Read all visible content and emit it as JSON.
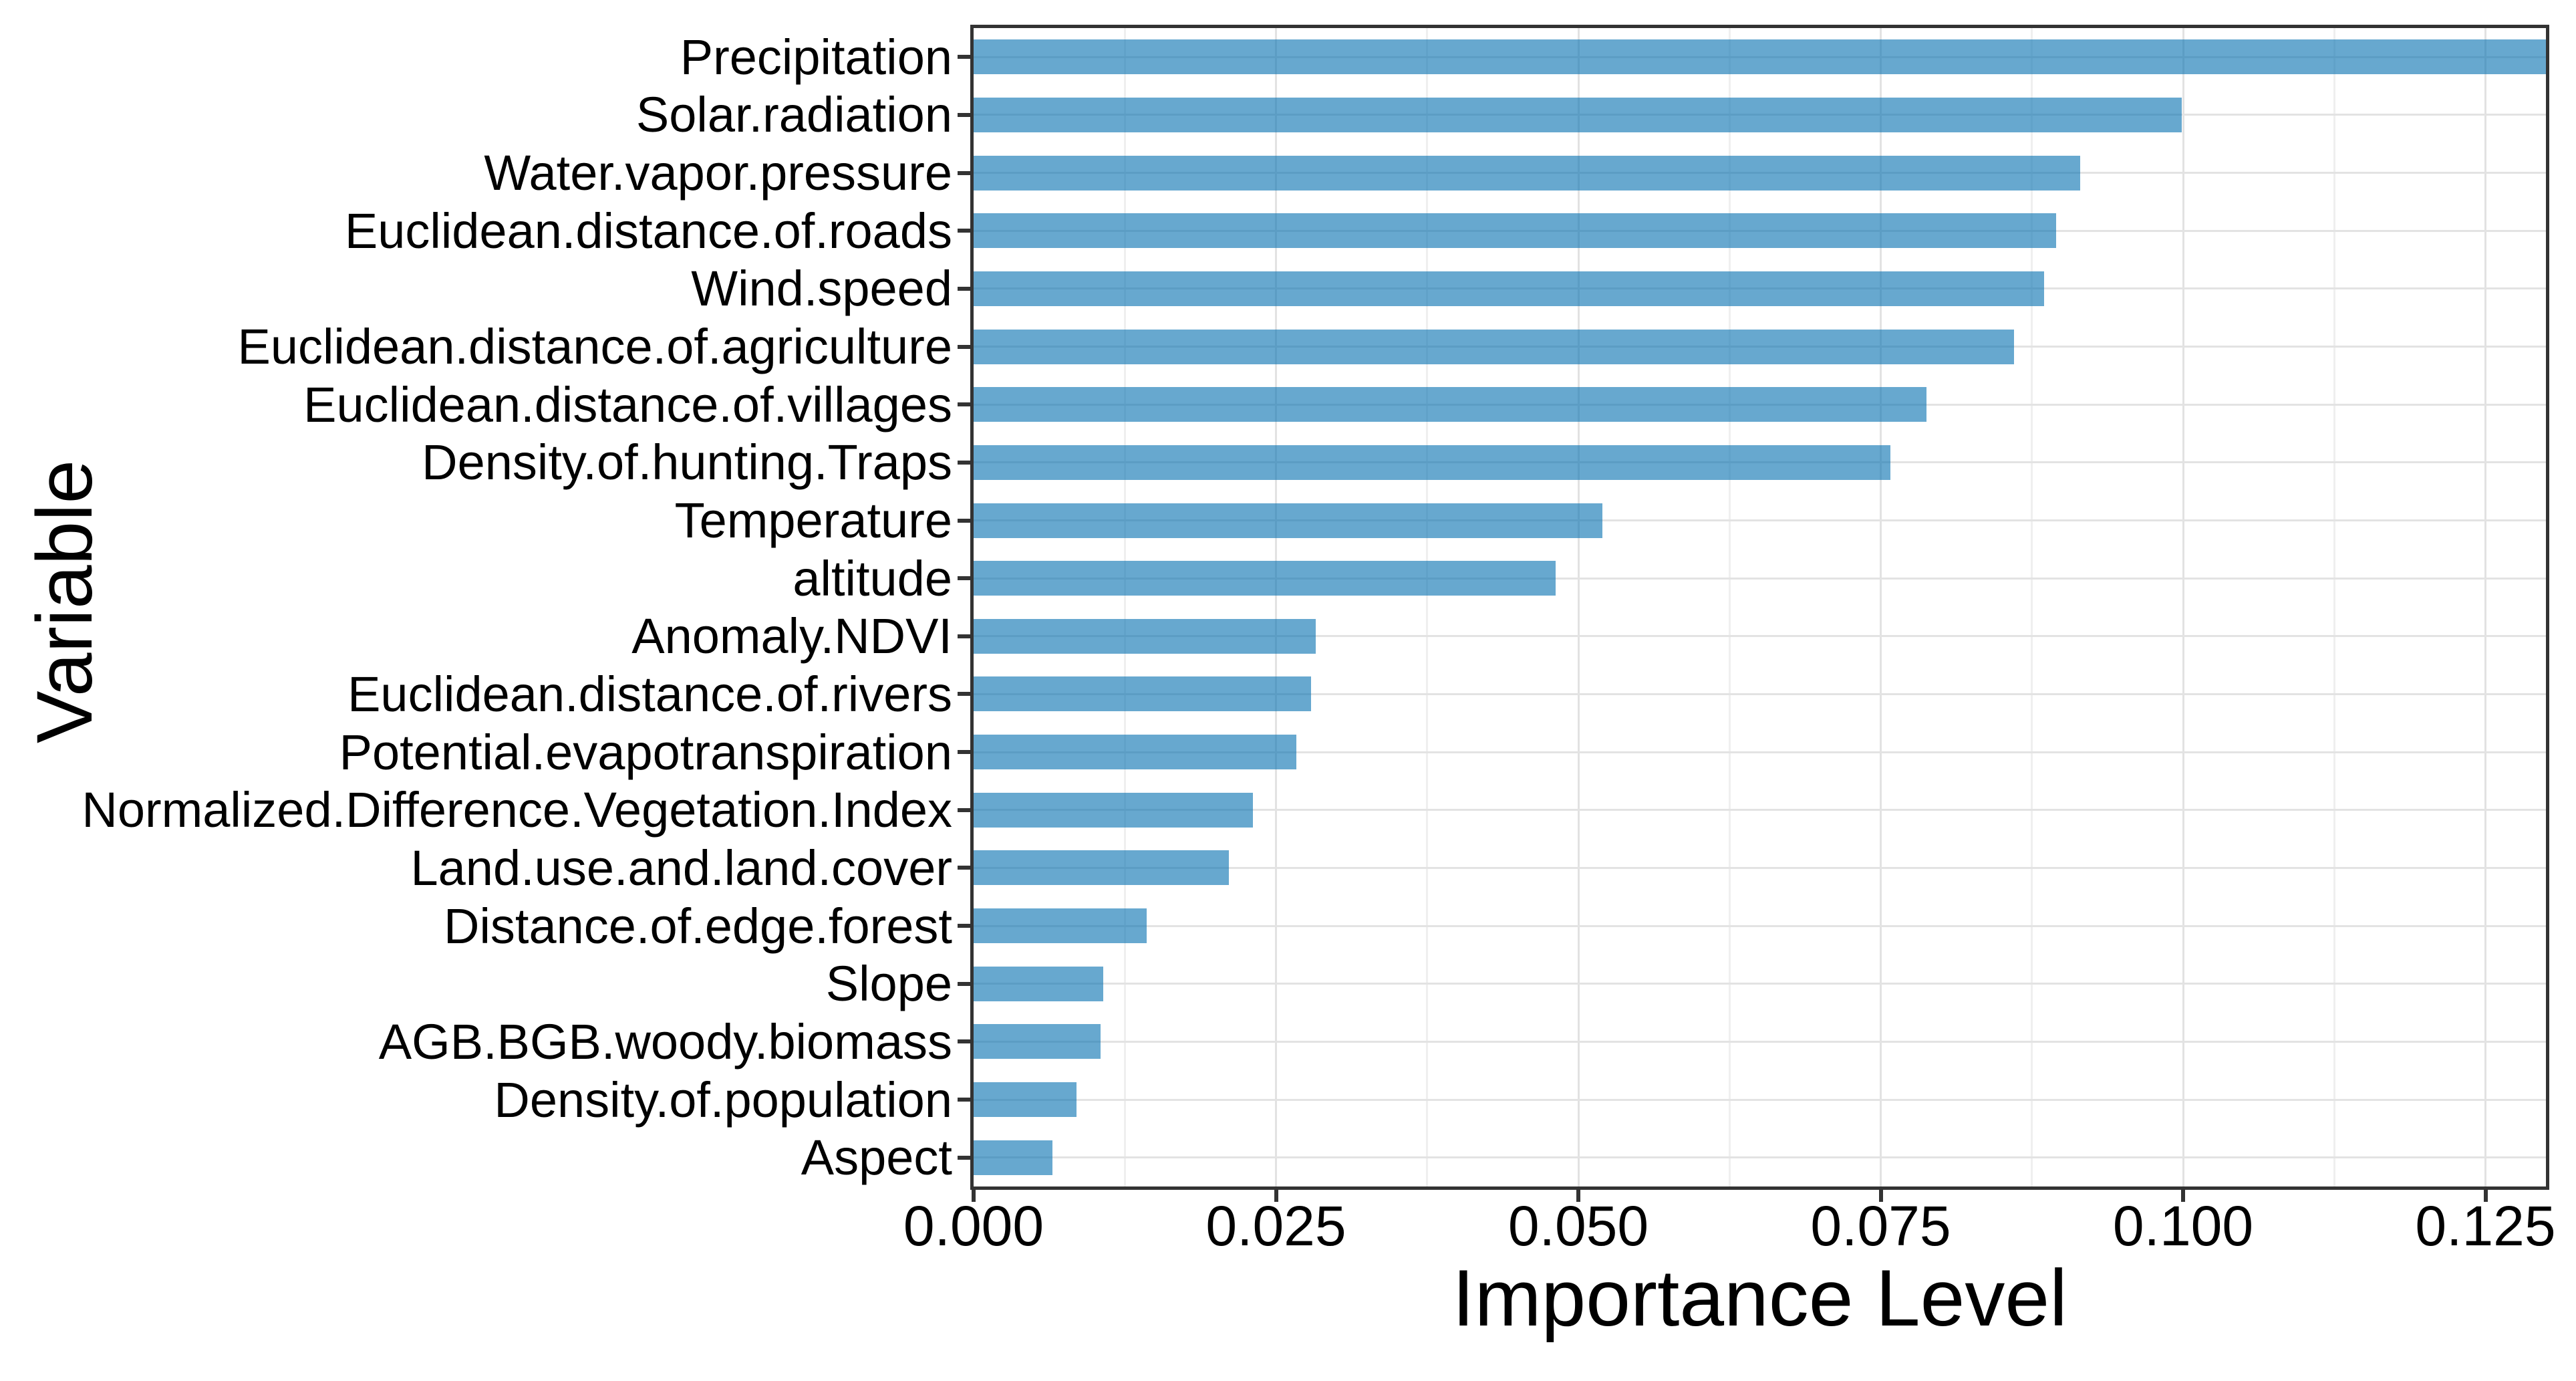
{
  "chart_data": {
    "type": "bar",
    "orientation": "horizontal",
    "xlabel": "Importance Level",
    "ylabel": "Variable",
    "xlim": [
      0,
      0.13
    ],
    "x_ticks": [
      0.0,
      0.025,
      0.05,
      0.075,
      0.1,
      0.125
    ],
    "x_tick_labels": [
      "0.000",
      "0.025",
      "0.050",
      "0.075",
      "0.100",
      "0.125"
    ],
    "x_minor_gridlines": [
      0.0125,
      0.0375,
      0.0625,
      0.0875,
      0.1125
    ],
    "grid": true,
    "legend": false,
    "bar_color": "#0a73b2",
    "bar_alpha": 0.62,
    "categories": [
      "Precipitation",
      "Solar.radiation",
      "Water.vapor.pressure",
      "Euclidean.distance.of.roads",
      "Wind.speed",
      "Euclidean.distance.of.agriculture",
      "Euclidean.distance.of.villages",
      "Density.of.hunting.Traps",
      "Temperature",
      "altitude",
      "Anomaly.NDVI",
      "Euclidean.distance.of.rivers",
      "Potential.evapotranspiration",
      "Normalized.Difference.Vegetation.Index",
      "Land.use.and.land.cover",
      "Distance.of.edge.forest",
      "Slope",
      "AGB.BGB.woody.biomass",
      "Density.of.population",
      "Aspect"
    ],
    "values": [
      0.13,
      0.0999,
      0.0915,
      0.0895,
      0.0885,
      0.086,
      0.0788,
      0.0758,
      0.052,
      0.0481,
      0.0283,
      0.0279,
      0.0267,
      0.0231,
      0.0211,
      0.0143,
      0.0107,
      0.0105,
      0.0085,
      0.0065
    ]
  },
  "colors": {
    "panel_border": "#333333",
    "grid_major": "#e3e3e3",
    "grid_minor": "#efefef",
    "text": "#000000",
    "background": "#ffffff"
  }
}
